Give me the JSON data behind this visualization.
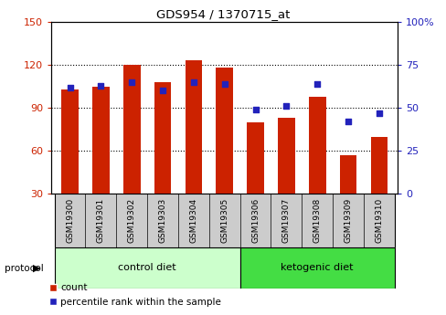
{
  "title": "GDS954 / 1370715_at",
  "samples": [
    "GSM19300",
    "GSM19301",
    "GSM19302",
    "GSM19303",
    "GSM19304",
    "GSM19305",
    "GSM19306",
    "GSM19307",
    "GSM19308",
    "GSM19309",
    "GSM19310"
  ],
  "bar_values": [
    103,
    105,
    120,
    108,
    123,
    118,
    80,
    83,
    98,
    57,
    70
  ],
  "percentile_values": [
    62,
    63,
    65,
    60,
    65,
    64,
    49,
    51,
    64,
    42,
    47
  ],
  "bar_color": "#cc2200",
  "percentile_color": "#2222bb",
  "ylim_left": [
    30,
    150
  ],
  "ylim_right": [
    0,
    100
  ],
  "yticks_left": [
    30,
    60,
    90,
    120,
    150
  ],
  "yticks_right": [
    0,
    25,
    50,
    75,
    100
  ],
  "yticklabels_right": [
    "0",
    "25",
    "50",
    "75",
    "100%"
  ],
  "gridlines": [
    60,
    90,
    120
  ],
  "control_diet_color": "#ccffcc",
  "ketogenic_diet_color": "#44dd44",
  "tick_color_left": "#cc2200",
  "tick_color_right": "#2222bb",
  "bar_width": 0.55,
  "sample_bg_color": "#cccccc",
  "bg_color": "#ffffff",
  "legend_count_label": "count",
  "legend_percentile_label": "percentile rank within the sample"
}
